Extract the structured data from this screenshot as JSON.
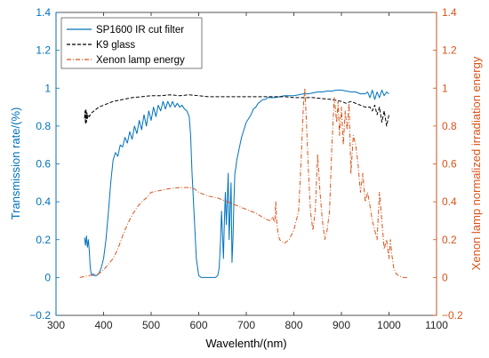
{
  "chart_data": {
    "type": "line",
    "title": "",
    "xlabel": "Wavelenth/(nm)",
    "ylabel_left": "Transmission rate/(%)",
    "ylabel_right": "Xenon lamp normalized irradiation energy",
    "xlim": [
      300,
      1100
    ],
    "ylim_left": [
      -0.2,
      1.4
    ],
    "ylim_right": [
      -0.2,
      1.4
    ],
    "x_ticks": [
      "300",
      "400",
      "500",
      "600",
      "700",
      "800",
      "900",
      "1000",
      "1100"
    ],
    "y_ticks_left": [
      "−0.2",
      "0",
      "0.2",
      "0.4",
      "0.6",
      "0.8",
      "1",
      "1.2",
      "1.4"
    ],
    "y_ticks_right": [
      "−0.2",
      "0",
      "0.2",
      "0.4",
      "0.6",
      "0.8",
      "1",
      "1.2",
      "1.4"
    ],
    "grid": false,
    "legend_position": "top-left",
    "colors": {
      "left_axis": "#0072BD",
      "right_axis": "#D95319",
      "axes": "#262626"
    },
    "series": [
      {
        "name": "SP1600 IR cut filter",
        "axis": "left",
        "color": "#0072BD",
        "style": "solid",
        "x": [
          360,
          362,
          364,
          366,
          368,
          370,
          372,
          374,
          376,
          378,
          380,
          385,
          390,
          395,
          400,
          402,
          405,
          410,
          415,
          420,
          425,
          430,
          435,
          440,
          445,
          450,
          455,
          460,
          465,
          470,
          475,
          480,
          485,
          490,
          495,
          500,
          505,
          510,
          515,
          520,
          525,
          530,
          535,
          540,
          545,
          550,
          555,
          560,
          565,
          570,
          575,
          580,
          583,
          586,
          590,
          595,
          600,
          605,
          610,
          615,
          620,
          625,
          630,
          635,
          640,
          643,
          646,
          648,
          650,
          652,
          654,
          656,
          658,
          660,
          662,
          664,
          666,
          668,
          670,
          672,
          674,
          676,
          678,
          680,
          685,
          690,
          695,
          700,
          705,
          710,
          715,
          720,
          725,
          730,
          735,
          740,
          745,
          750,
          760,
          770,
          780,
          790,
          800,
          810,
          820,
          830,
          840,
          850,
          860,
          870,
          880,
          890,
          900,
          910,
          920,
          930,
          940,
          950,
          955,
          960,
          965,
          970,
          975,
          980,
          985,
          990,
          995,
          1000
        ],
        "y": [
          0.21,
          0.17,
          0.22,
          0.16,
          0.2,
          0.14,
          0.05,
          0.02,
          0.01,
          0.02,
          0.01,
          0.01,
          0.02,
          0.05,
          0.1,
          0.14,
          0.2,
          0.34,
          0.5,
          0.62,
          0.66,
          0.64,
          0.7,
          0.69,
          0.74,
          0.71,
          0.77,
          0.73,
          0.8,
          0.76,
          0.83,
          0.78,
          0.86,
          0.8,
          0.88,
          0.83,
          0.9,
          0.85,
          0.91,
          0.88,
          0.93,
          0.89,
          0.93,
          0.9,
          0.93,
          0.9,
          0.92,
          0.9,
          0.91,
          0.89,
          0.88,
          0.85,
          0.75,
          0.55,
          0.35,
          0.1,
          0.01,
          0.0,
          0.0,
          0.0,
          0.0,
          0.0,
          0.0,
          0.0,
          0.01,
          0.05,
          0.2,
          0.35,
          0.23,
          0.1,
          0.3,
          0.45,
          0.28,
          0.4,
          0.55,
          0.2,
          0.35,
          0.5,
          0.08,
          0.2,
          0.4,
          0.55,
          0.58,
          0.62,
          0.68,
          0.74,
          0.78,
          0.82,
          0.84,
          0.86,
          0.89,
          0.9,
          0.92,
          0.93,
          0.94,
          0.94,
          0.95,
          0.95,
          0.95,
          0.955,
          0.96,
          0.96,
          0.96,
          0.965,
          0.97,
          0.97,
          0.975,
          0.98,
          0.98,
          0.985,
          0.985,
          0.99,
          0.99,
          0.985,
          0.98,
          0.98,
          0.97,
          0.97,
          0.98,
          0.95,
          0.99,
          0.94,
          0.98,
          0.95,
          0.99,
          0.96,
          0.98,
          0.97
        ]
      },
      {
        "name": "K9 glass",
        "axis": "left",
        "color": "#000000",
        "style": "dashed",
        "x": [
          360,
          361,
          362,
          363,
          364,
          365,
          366,
          368,
          370,
          372,
          375,
          380,
          390,
          400,
          420,
          440,
          460,
          480,
          500,
          520,
          540,
          560,
          580,
          600,
          620,
          640,
          660,
          680,
          700,
          720,
          740,
          760,
          780,
          800,
          820,
          840,
          860,
          880,
          900,
          910,
          920,
          930,
          940,
          950,
          960,
          965,
          970,
          975,
          980,
          985,
          990,
          995,
          1000
        ],
        "y": [
          0.84,
          0.88,
          0.81,
          0.89,
          0.82,
          0.87,
          0.84,
          0.86,
          0.85,
          0.86,
          0.87,
          0.88,
          0.9,
          0.91,
          0.93,
          0.94,
          0.95,
          0.955,
          0.96,
          0.96,
          0.965,
          0.96,
          0.965,
          0.96,
          0.955,
          0.955,
          0.955,
          0.955,
          0.955,
          0.955,
          0.955,
          0.955,
          0.955,
          0.95,
          0.95,
          0.95,
          0.945,
          0.94,
          0.93,
          0.92,
          0.93,
          0.92,
          0.91,
          0.9,
          0.9,
          0.88,
          0.91,
          0.86,
          0.9,
          0.82,
          0.88,
          0.8,
          0.86
        ]
      },
      {
        "name": "Xenon lamp energy",
        "axis": "right",
        "color": "#D95319",
        "style": "dashdot",
        "x": [
          350,
          370,
          390,
          400,
          410,
          420,
          430,
          440,
          450,
          460,
          470,
          480,
          490,
          500,
          520,
          540,
          560,
          580,
          590,
          600,
          620,
          640,
          660,
          680,
          700,
          720,
          740,
          750,
          755,
          760,
          762,
          764,
          766,
          768,
          770,
          780,
          790,
          800,
          810,
          815,
          820,
          823,
          826,
          830,
          835,
          840,
          845,
          850,
          855,
          860,
          865,
          870,
          875,
          880,
          885,
          890,
          893,
          896,
          900,
          904,
          908,
          912,
          916,
          920,
          925,
          930,
          935,
          940,
          945,
          950,
          955,
          960,
          965,
          970,
          975,
          980,
          985,
          990,
          995,
          1000,
          1003,
          1006,
          1010,
          1015,
          1020,
          1030,
          1040
        ],
        "y": [
          0.0,
          0.01,
          0.02,
          0.04,
          0.07,
          0.1,
          0.15,
          0.22,
          0.28,
          0.33,
          0.37,
          0.4,
          0.42,
          0.45,
          0.46,
          0.47,
          0.475,
          0.475,
          0.47,
          0.45,
          0.43,
          0.42,
          0.4,
          0.38,
          0.36,
          0.34,
          0.31,
          0.3,
          0.32,
          0.29,
          0.4,
          0.3,
          0.25,
          0.22,
          0.2,
          0.18,
          0.2,
          0.25,
          0.35,
          0.6,
          0.9,
          1.0,
          0.85,
          0.6,
          0.35,
          0.25,
          0.35,
          0.65,
          0.45,
          0.3,
          0.2,
          0.25,
          0.35,
          0.7,
          0.95,
          0.82,
          0.93,
          0.75,
          0.9,
          0.7,
          0.88,
          0.78,
          0.92,
          0.55,
          0.75,
          0.7,
          0.6,
          0.45,
          0.55,
          0.4,
          0.45,
          0.38,
          0.3,
          0.25,
          0.2,
          0.45,
          0.3,
          0.15,
          0.2,
          0.1,
          0.2,
          0.12,
          0.05,
          0.02,
          0.01,
          0.0,
          0.0
        ]
      }
    ]
  }
}
